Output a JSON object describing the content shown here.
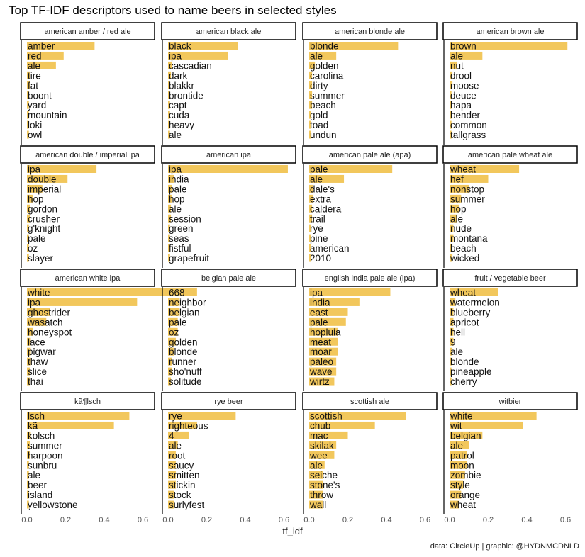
{
  "title": "Top TF-IDF descriptors used to name beers in selected styles",
  "caption": "data: CircleUp | graphic: @HYDNMCDNLD",
  "chart_data": {
    "type": "bar",
    "orientation": "horizontal",
    "facet_layout": "4x4 grid",
    "xlabel": "tf_idf",
    "xlim": [
      0,
      0.8
    ],
    "xticks": [
      0.0,
      0.2,
      0.4,
      0.6
    ],
    "xtick_labels": [
      "0.0",
      "0.2",
      "0.4",
      "0.6"
    ],
    "bar_color": "#f2c75c",
    "grid": false,
    "panels": [
      {
        "title": "american amber / red ale",
        "terms": [
          "amber",
          "red",
          "ale",
          "tire",
          "fat",
          "boont",
          "yard",
          "mountain",
          "loki",
          "owl"
        ],
        "values": [
          0.35,
          0.19,
          0.15,
          0.015,
          0.015,
          0.01,
          0.01,
          0.01,
          0.01,
          0.01
        ]
      },
      {
        "title": "american black ale",
        "terms": [
          "black",
          "ipa",
          "cascadian",
          "dark",
          "blakkr",
          "brontide",
          "capt",
          "cuda",
          "heavy",
          "ale"
        ],
        "values": [
          0.36,
          0.31,
          0.02,
          0.015,
          0.01,
          0.01,
          0.01,
          0.01,
          0.01,
          0.01
        ]
      },
      {
        "title": "american blonde ale",
        "terms": [
          "blonde",
          "ale",
          "golden",
          "carolina",
          "dirty",
          "summer",
          "beach",
          "gold",
          "toad",
          "undun"
        ],
        "values": [
          0.46,
          0.14,
          0.03,
          0.015,
          0.015,
          0.015,
          0.015,
          0.01,
          0.01,
          0.01
        ]
      },
      {
        "title": "american brown ale",
        "terms": [
          "brown",
          "ale",
          "nut",
          "drool",
          "moose",
          "deuce",
          "hapa",
          "bender",
          "common",
          "tallgrass"
        ],
        "values": [
          0.61,
          0.17,
          0.04,
          0.015,
          0.015,
          0.01,
          0.01,
          0.01,
          0.01,
          0.01
        ]
      },
      {
        "title": "american double / imperial ipa",
        "terms": [
          "ipa",
          "double",
          "imperial",
          "hop",
          "gordon",
          "crusher",
          "g'knight",
          "pale",
          "oz",
          "slayer"
        ],
        "values": [
          0.36,
          0.21,
          0.08,
          0.03,
          0.015,
          0.015,
          0.01,
          0.01,
          0.01,
          0.01
        ]
      },
      {
        "title": "american ipa",
        "terms": [
          "ipa",
          "india",
          "pale",
          "hop",
          "ale",
          "session",
          "green",
          "seas",
          "fistful",
          "grapefruit"
        ],
        "values": [
          0.62,
          0.03,
          0.02,
          0.02,
          0.015,
          0.015,
          0.01,
          0.01,
          0.01,
          0.01
        ]
      },
      {
        "title": "american pale ale (apa)",
        "terms": [
          "pale",
          "ale",
          "dale's",
          "extra",
          "caldera",
          "trail",
          "rye",
          "pine",
          "american",
          "2010"
        ],
        "values": [
          0.43,
          0.18,
          0.02,
          0.02,
          0.015,
          0.015,
          0.01,
          0.01,
          0.01,
          0.01
        ]
      },
      {
        "title": "american pale wheat ale",
        "terms": [
          "wheat",
          "hef",
          "nonstop",
          "summer",
          "hop",
          "ale",
          "nude",
          "montana",
          "beach",
          "wicked"
        ],
        "values": [
          0.36,
          0.2,
          0.1,
          0.06,
          0.05,
          0.04,
          0.02,
          0.02,
          0.015,
          0.015
        ]
      },
      {
        "title": "american white ipa",
        "terms": [
          "white",
          "ipa",
          "ghostrider",
          "wasatch",
          "honeyspot",
          "lace",
          "pigwar",
          "thaw",
          "slice",
          "thai"
        ],
        "values": [
          0.75,
          0.57,
          0.12,
          0.1,
          0.03,
          0.02,
          0.02,
          0.02,
          0.015,
          0.015
        ]
      },
      {
        "title": "belgian pale ale",
        "terms": [
          "668",
          "neighbor",
          "belgian",
          "pale",
          "oz",
          "golden",
          "blonde",
          "runner",
          "sho'nuff",
          "solitude"
        ],
        "values": [
          0.15,
          0.06,
          0.06,
          0.05,
          0.05,
          0.04,
          0.03,
          0.02,
          0.02,
          0.015
        ]
      },
      {
        "title": "english india pale ale (ipa)",
        "terms": [
          "ipa",
          "india",
          "east",
          "pale",
          "hopluia",
          "meat",
          "moar",
          "paleo",
          "wave",
          "wirtz"
        ],
        "values": [
          0.42,
          0.26,
          0.2,
          0.19,
          0.15,
          0.15,
          0.15,
          0.14,
          0.14,
          0.13
        ]
      },
      {
        "title": "fruit / vegetable beer",
        "terms": [
          "wheat",
          "watermelon",
          "blueberry",
          "apricot",
          "hell",
          "9",
          "ale",
          "blonde",
          "pineapple",
          "cherry"
        ],
        "values": [
          0.25,
          0.03,
          0.02,
          0.02,
          0.02,
          0.02,
          0.015,
          0.015,
          0.01,
          0.01
        ]
      },
      {
        "title": "kã¶lsch",
        "terms": [
          "lsch",
          "kã",
          "kolsch",
          "summer",
          "harpoon",
          "sunbru",
          "ale",
          "beer",
          "island",
          "yellowstone"
        ],
        "values": [
          0.53,
          0.45,
          0.02,
          0.015,
          0.015,
          0.01,
          0.01,
          0.01,
          0.01,
          0.01
        ]
      },
      {
        "title": "rye beer",
        "terms": [
          "rye",
          "righteous",
          "4",
          "ale",
          "root",
          "saucy",
          "smitten",
          "stickin",
          "stock",
          "surlyfest"
        ],
        "values": [
          0.35,
          0.15,
          0.11,
          0.05,
          0.04,
          0.04,
          0.04,
          0.04,
          0.03,
          0.03
        ]
      },
      {
        "title": "scottish ale",
        "terms": [
          "scottish",
          "chub",
          "mac",
          "skilak",
          "wee",
          "ale",
          "seiche",
          "stone's",
          "throw",
          "wall"
        ],
        "values": [
          0.5,
          0.34,
          0.2,
          0.14,
          0.13,
          0.08,
          0.07,
          0.07,
          0.07,
          0.07
        ]
      },
      {
        "title": "witbier",
        "terms": [
          "white",
          "wit",
          "belgian",
          "ale",
          "patrol",
          "moon",
          "zombie",
          "style",
          "orange",
          "wheat"
        ],
        "values": [
          0.45,
          0.38,
          0.17,
          0.1,
          0.09,
          0.09,
          0.08,
          0.07,
          0.06,
          0.05
        ]
      }
    ]
  }
}
